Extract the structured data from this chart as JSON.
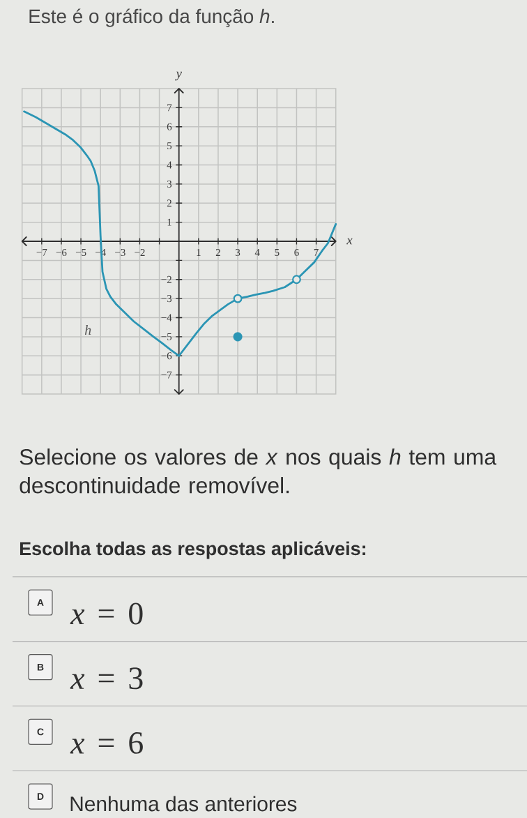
{
  "chart_data": {
    "type": "line",
    "title": "Este é o gráfico da função *h*.",
    "xlabel": "x",
    "ylabel": "y",
    "xlim": [
      -8,
      8
    ],
    "ylim": [
      -8,
      8
    ],
    "xticks": [
      {
        "value": -7,
        "label": "−7"
      },
      {
        "value": -6,
        "label": "−6"
      },
      {
        "value": -5,
        "label": "−5"
      },
      {
        "value": -4,
        "label": "−4"
      },
      {
        "value": -3,
        "label": "−3"
      },
      {
        "value": -2,
        "label": "−2"
      },
      {
        "value": -1,
        "label": null
      },
      1,
      2,
      3,
      4,
      5,
      6,
      7
    ],
    "yticks": [
      {
        "value": -7,
        "label": "−7"
      },
      {
        "value": -6,
        "label": "−6"
      },
      {
        "value": -5,
        "label": "−5"
      },
      {
        "value": -4,
        "label": "−4"
      },
      {
        "value": -3,
        "label": "−3"
      },
      {
        "value": -2,
        "label": "−2"
      },
      {
        "value": -1,
        "label": null
      },
      1,
      2,
      3,
      4,
      5,
      6,
      7
    ],
    "grid": true,
    "series": [
      {
        "name": "h",
        "color": "#2b95b4",
        "x": [
          -7.9,
          -7.3,
          -6.8,
          -6.3,
          -5.8,
          -5.4,
          -5.0,
          -4.7,
          -4.5,
          -4.3,
          -4.2,
          -4.1,
          -4.0,
          -3.9,
          -3.7,
          -3.5,
          -3.2,
          -2.8,
          -2.3,
          -1.8,
          -1.3,
          -0.9,
          -0.4,
          0,
          0.3,
          0.6,
          0.9,
          1.3,
          1.7,
          2.1,
          2.5,
          3,
          3.5,
          3.9,
          4.4,
          4.8,
          5.4,
          6,
          6.4,
          6.9,
          7.3,
          7.6,
          8
        ],
        "values": [
          6.8,
          6.5,
          6.2,
          5.9,
          5.6,
          5.3,
          4.9,
          4.5,
          4.2,
          3.7,
          3.3,
          2.9,
          0.3,
          -1.6,
          -2.5,
          -2.9,
          -3.3,
          -3.7,
          -4.2,
          -4.6,
          -5.0,
          -5.3,
          -5.7,
          -6,
          -5.6,
          -5.2,
          -4.8,
          -4.3,
          -3.9,
          -3.6,
          -3.3,
          -3,
          -2.9,
          -2.8,
          -2.7,
          -2.6,
          -2.4,
          -2,
          -1.6,
          -1.1,
          -0.5,
          -0.1,
          0.9
        ]
      },
      {
        "marker": "circle",
        "color": "#2b95b4",
        "x": [
          3
        ],
        "values": [
          -3
        ]
      },
      {
        "marker": "circle",
        "color": "#2b95b4",
        "x": [
          6
        ],
        "values": [
          -2
        ]
      },
      {
        "type": "scatter",
        "marker": "circle",
        "color": "#2b95b4",
        "x": [
          3
        ],
        "values": [
          -5
        ]
      }
    ],
    "annotations": [
      "Selecione os valores de *x* nos quais *h* tem uma descontinuidade removível.",
      "Escolha todas as respostas aplicáveis:",
      "A",
      "*x* = 0",
      "B",
      "*x* = 3",
      "C",
      "*x* = 6",
      "D",
      "Nenhuma das anteriores"
    ]
  }
}
